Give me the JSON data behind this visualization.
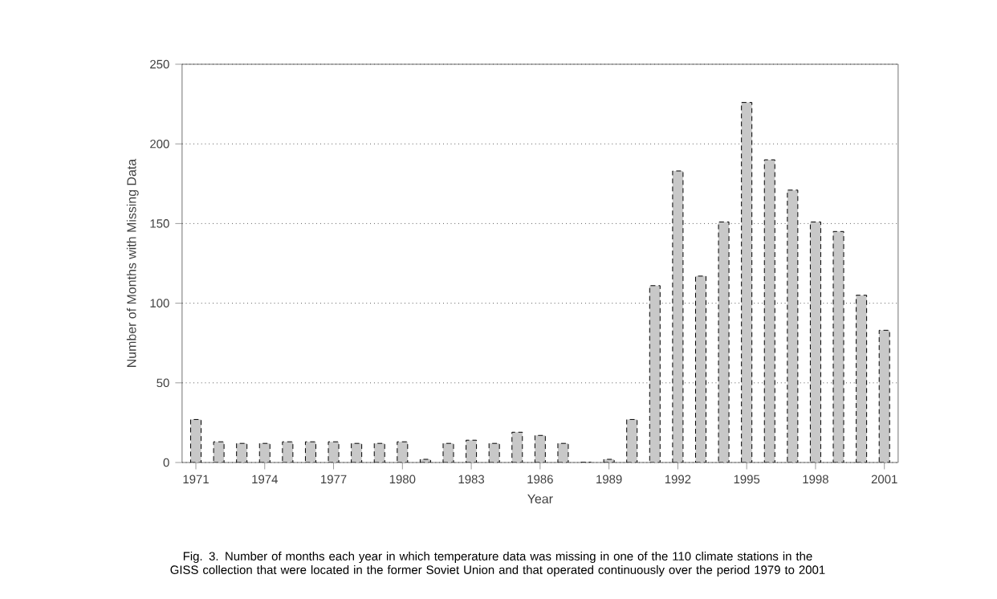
{
  "chart_data": {
    "type": "bar",
    "xlabel": "Year",
    "ylabel": "Number of Months with Missing Data",
    "categories": [
      "1971",
      null,
      null,
      "1974",
      null,
      null,
      "1977",
      null,
      null,
      "1980",
      null,
      null,
      "1983",
      null,
      null,
      "1986",
      null,
      null,
      "1989",
      null,
      null,
      "1992",
      null,
      null,
      "1995",
      null,
      null,
      "1998",
      null,
      null,
      "2001"
    ],
    "values": [
      27,
      13,
      12,
      12,
      13,
      13,
      13,
      12,
      12,
      13,
      2,
      12,
      14,
      12,
      19,
      17,
      12,
      0,
      2,
      27,
      111,
      183,
      117,
      151,
      226,
      190,
      171,
      151,
      145,
      105,
      83
    ],
    "color": "#c8c8c8",
    "ylim": [
      0,
      250
    ],
    "yticks": [
      0,
      50,
      100,
      150,
      200,
      250
    ],
    "grid": "y",
    "annotations": [
      "Fig. 3. Number of months each year in which temperature data was missing in one of the 110 climate stations in the GISS collection that were located in the former Soviet Union and that operated continuously over the period 1979 to 2001"
    ]
  }
}
